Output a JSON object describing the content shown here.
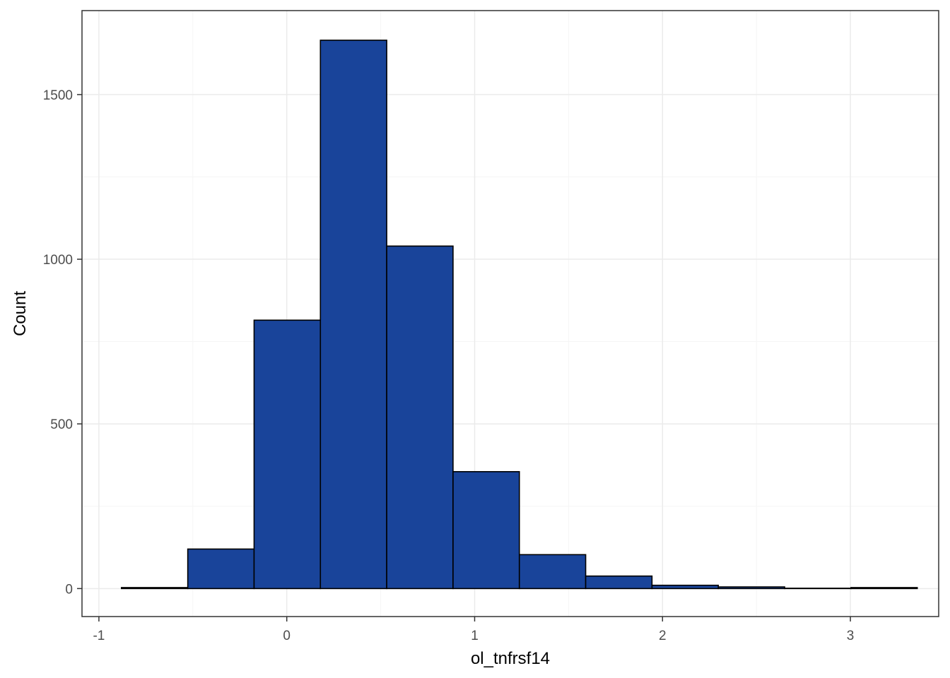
{
  "chart_data": {
    "type": "bar",
    "title": "",
    "xlabel": "ol_tnfrsf14",
    "ylabel": "Count",
    "xlim": [
      -1.09,
      3.47
    ],
    "ylim": [
      -85,
      1755
    ],
    "x_ticks": [
      -1,
      0,
      1,
      2,
      3
    ],
    "x_tick_labels": [
      "-1",
      "0",
      "1",
      "2",
      "3"
    ],
    "y_ticks": [
      0,
      500,
      1000,
      1500
    ],
    "y_tick_labels": [
      "0",
      "500",
      "1000",
      "1500"
    ],
    "grid": true,
    "legend": "none",
    "bin_edges": [
      -0.88,
      -0.527,
      -0.174,
      0.179,
      0.532,
      0.885,
      1.238,
      1.591,
      1.944,
      2.297,
      2.65,
      3.003,
      3.356
    ],
    "values": [
      3,
      120,
      815,
      1665,
      1040,
      355,
      103,
      38,
      10,
      5,
      1,
      3
    ],
    "colors": {
      "bar_fill": "#19449a",
      "bar_stroke": "#000000",
      "panel_border": "#333333",
      "grid_major": "#ebebeb",
      "grid_minor": "#f5f5f5"
    }
  }
}
